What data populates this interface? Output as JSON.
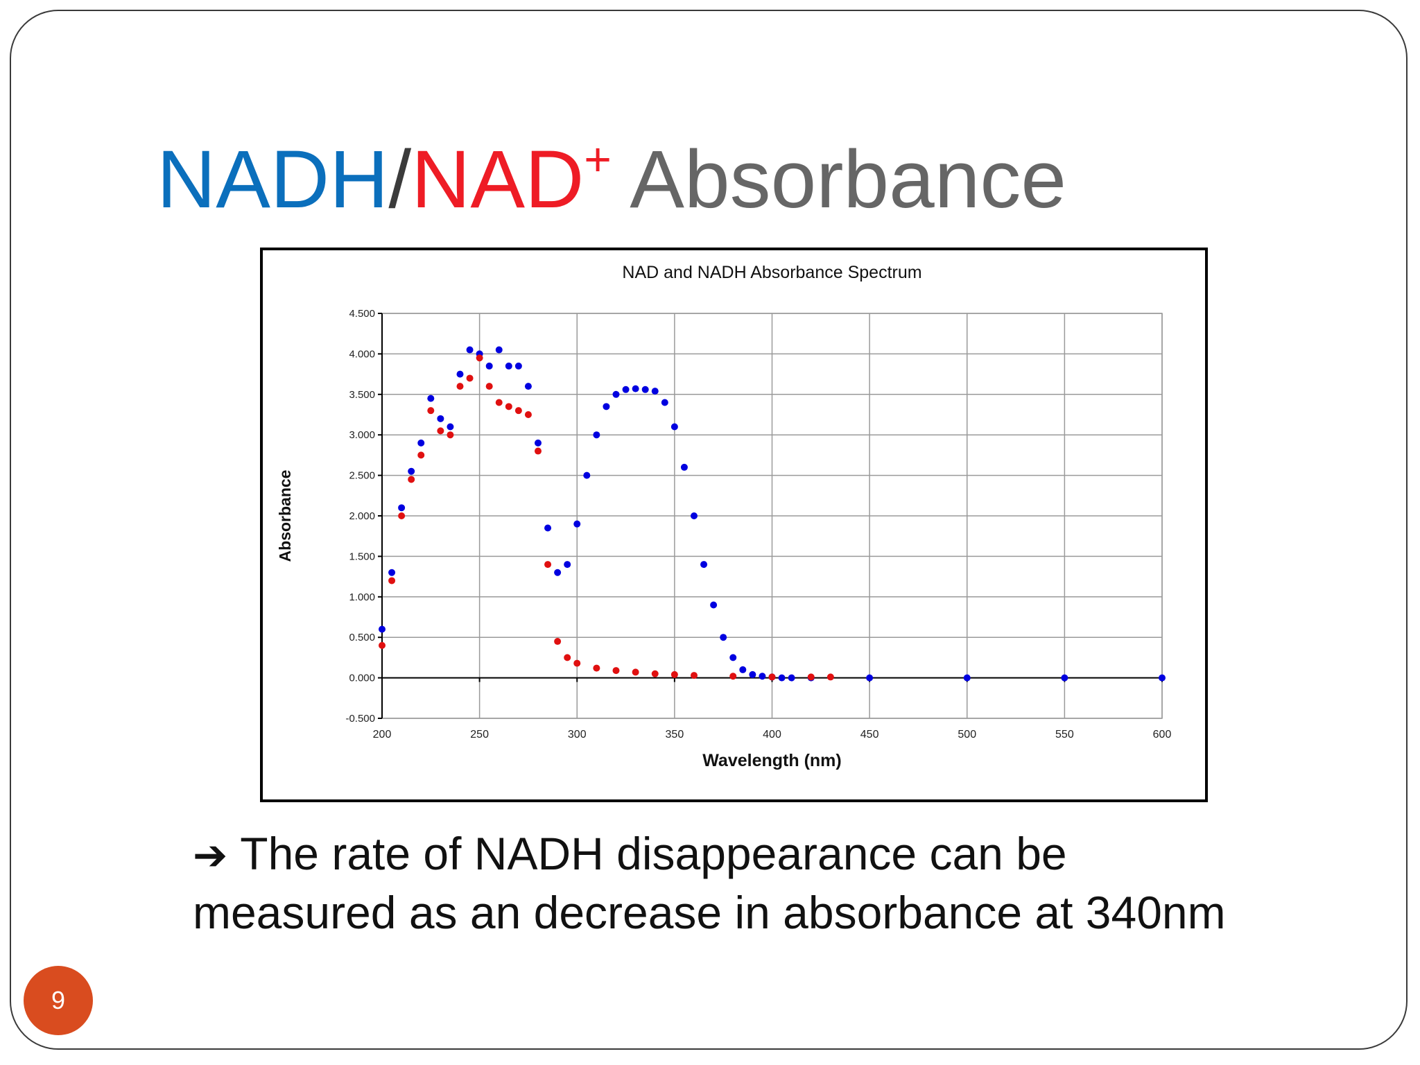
{
  "slide": {
    "title_part1": "NADH",
    "title_sep": "/",
    "title_part2": "NAD",
    "title_sup": "+",
    "title_part3": " Absorbance",
    "caption_arrow": "➔",
    "caption_line1": "The rate of NADH disappearance can be",
    "caption_line2": "measured as an decrease in absorbance at 340nm",
    "page_number": "9",
    "colors": {
      "nadh_title": "#0b6fbc",
      "nad_title": "#ee1c25",
      "title_rest": "#666666",
      "badge": "#d94c1f"
    }
  },
  "chart_data": {
    "type": "scatter",
    "title": "NAD and NADH Absorbance Spectrum",
    "xlabel": "Wavelength (nm)",
    "ylabel": "Absorbance",
    "xlim": [
      200,
      600
    ],
    "ylim": [
      -0.5,
      4.5
    ],
    "xticks": [
      200,
      250,
      300,
      350,
      400,
      450,
      500,
      550,
      600
    ],
    "yticks": [
      -0.5,
      0,
      0.5,
      1,
      1.5,
      2,
      2.5,
      3,
      3.5,
      4,
      4.5
    ],
    "ytick_labels": [
      "-0.500",
      "0.000",
      "0.500",
      "1.000",
      "1.500",
      "2.000",
      "2.500",
      "3.000",
      "3.500",
      "4.000",
      "4.500"
    ],
    "grid": true,
    "legend": "none",
    "series": [
      {
        "color": "#0000e0",
        "x": [
          200,
          205,
          210,
          215,
          220,
          225,
          230,
          235,
          240,
          245,
          250,
          255,
          260,
          265,
          270,
          275,
          280,
          285,
          290,
          295,
          300,
          305,
          310,
          315,
          320,
          325,
          330,
          335,
          340,
          345,
          350,
          355,
          360,
          365,
          370,
          375,
          380,
          385,
          390,
          395,
          400,
          405,
          410,
          420,
          450,
          500,
          550,
          600
        ],
        "y": [
          0.6,
          1.3,
          2.1,
          2.55,
          2.9,
          3.45,
          3.2,
          3.1,
          3.75,
          4.05,
          4.0,
          3.85,
          4.05,
          3.85,
          3.85,
          3.6,
          2.9,
          1.85,
          1.3,
          1.4,
          1.9,
          2.5,
          3.0,
          3.35,
          3.5,
          3.56,
          3.57,
          3.56,
          3.54,
          3.4,
          3.1,
          2.6,
          2.0,
          1.4,
          0.9,
          0.5,
          0.25,
          0.1,
          0.04,
          0.02,
          0.01,
          0.0,
          0.0,
          0.0,
          0.0,
          0.0,
          0.0,
          0.0
        ]
      },
      {
        "color": "#e01010",
        "x": [
          200,
          205,
          210,
          215,
          220,
          225,
          230,
          235,
          240,
          245,
          250,
          255,
          260,
          265,
          270,
          275,
          280,
          285,
          290,
          295,
          300,
          310,
          320,
          330,
          340,
          350,
          360,
          380,
          400,
          420,
          430
        ],
        "y": [
          0.4,
          1.2,
          2.0,
          2.45,
          2.75,
          3.3,
          3.05,
          3.0,
          3.6,
          3.7,
          3.95,
          3.6,
          3.4,
          3.35,
          3.3,
          3.25,
          2.8,
          1.4,
          0.45,
          0.25,
          0.18,
          0.12,
          0.09,
          0.07,
          0.05,
          0.04,
          0.03,
          0.02,
          0.01,
          0.01,
          0.01
        ]
      }
    ]
  }
}
